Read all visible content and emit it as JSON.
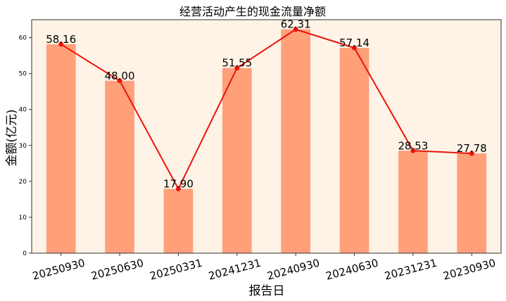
{
  "chart_data": {
    "type": "bar",
    "title": "经营活动产生的现金流量净额",
    "xlabel": "报告日",
    "ylabel": "金额(亿元)",
    "categories": [
      "20250930",
      "20250630",
      "20250331",
      "20241231",
      "20240930",
      "20240630",
      "20231231",
      "20230930"
    ],
    "values": [
      58.16,
      48.0,
      17.9,
      51.55,
      62.31,
      57.14,
      28.53,
      27.78
    ],
    "data_labels": [
      "58.16",
      "48.00",
      "17.90",
      "51.55",
      "62.31",
      "57.14",
      "28.53",
      "27.78"
    ],
    "line_overlay": true,
    "ylim": [
      0,
      65
    ],
    "yticks": [
      0,
      10,
      20,
      30,
      40,
      50,
      60
    ],
    "grid": false,
    "colors": {
      "bar": "#ffa07a",
      "line": "#e8140c",
      "plot_background": "#fef3e6",
      "axis": "#333333"
    }
  }
}
